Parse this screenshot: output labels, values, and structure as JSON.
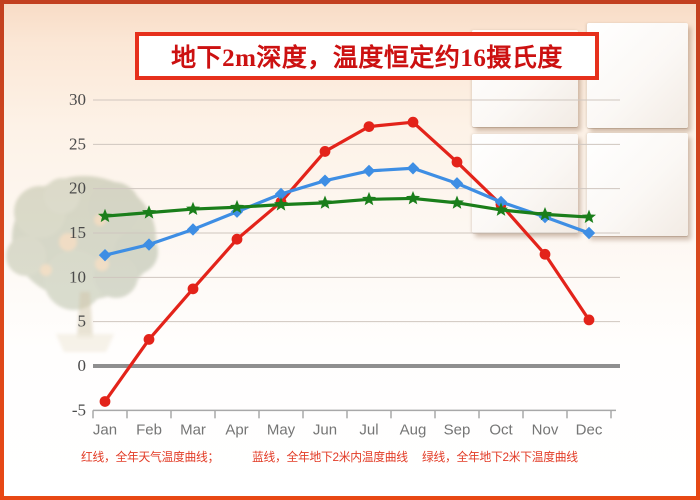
{
  "title": "地下2m深度，温度恒定约16摄氏度",
  "legend": {
    "red": "红线，全年天气温度曲线；",
    "blue": "蓝线，全年地下2米内温度曲线",
    "green": "绿线，全年地下2米下温度曲线"
  },
  "colors": {
    "red_series": "#e3231a",
    "blue_series": "#3e8ee4",
    "green_series": "#1a7e1a",
    "title_text": "#cc1111",
    "title_border": "#e6301c",
    "legend_text": "#e23b25"
  },
  "chart_data": {
    "type": "line",
    "categories": [
      "Jan",
      "Feb",
      "Mar",
      "Apr",
      "May",
      "Jun",
      "Jul",
      "Aug",
      "Sep",
      "Oct",
      "Nov",
      "Dec"
    ],
    "series": [
      {
        "name": "红线，全年天气温度曲线",
        "color": "#e3231a",
        "marker": "circle",
        "values": [
          -4,
          3,
          8.7,
          14.3,
          18.5,
          24.2,
          27,
          27.5,
          23,
          18.2,
          12.6,
          5.2
        ]
      },
      {
        "name": "蓝线，全年地下2米内温度曲线",
        "color": "#3e8ee4",
        "marker": "diamond",
        "values": [
          12.5,
          13.7,
          15.4,
          17.4,
          19.4,
          20.9,
          22,
          22.3,
          20.6,
          18.5,
          16.8,
          15
        ]
      },
      {
        "name": "绿线，全年地下2米下温度曲线",
        "color": "#1a7e1a",
        "marker": "star",
        "values": [
          16.9,
          17.3,
          17.7,
          17.9,
          18.2,
          18.4,
          18.8,
          18.9,
          18.4,
          17.6,
          17.1,
          16.8
        ]
      }
    ],
    "title": "地下2m深度，温度恒定约16摄氏度",
    "xlabel": "",
    "ylabel": "",
    "ylim": [
      -5,
      30
    ],
    "yticks": [
      30,
      25,
      20,
      15,
      10,
      5,
      0,
      -5
    ],
    "grid": true,
    "legend_position": "bottom"
  }
}
